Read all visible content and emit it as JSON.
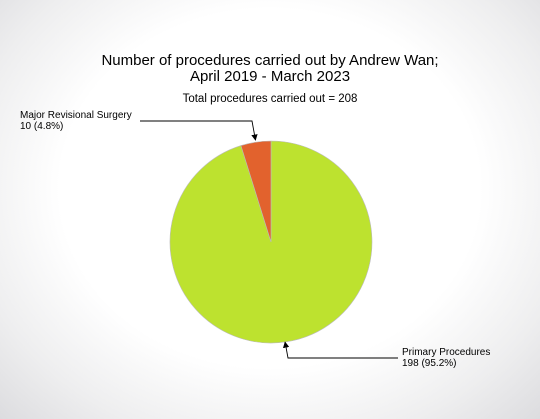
{
  "chart_data": {
    "type": "pie",
    "title_line1": "Number of procedures carried out by Andrew Wan;",
    "title_line2": "April 2019 - March 2023",
    "subtitle": "Total procedures carried out = 208",
    "slices": [
      {
        "label": "Primary Procedures",
        "value": 198,
        "value_text": "198 (95.2%)",
        "color": "#bde22f"
      },
      {
        "label": "Major Revisional Surgery",
        "value": 10,
        "value_text": "10 (4.8%)",
        "color": "#e2622d"
      }
    ],
    "legend": "none"
  }
}
